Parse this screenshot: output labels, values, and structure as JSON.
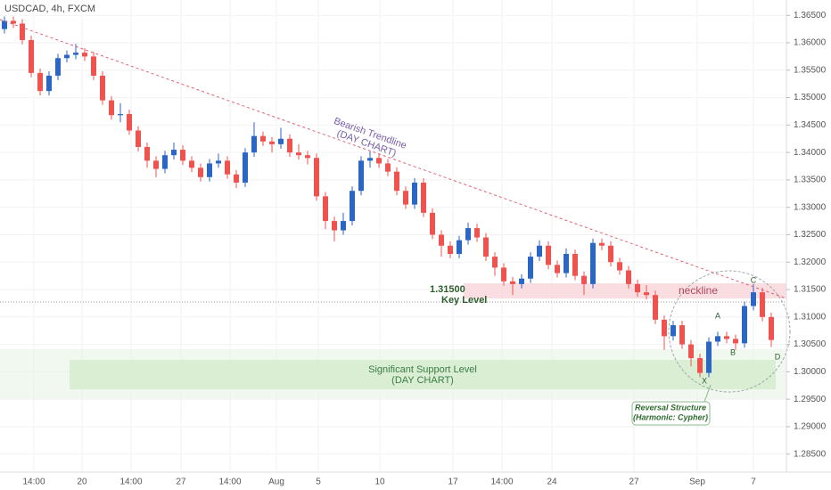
{
  "chart_data": {
    "type": "candlestick",
    "title": "USDCAD, 4h, FXCM",
    "up_color": "#2c66c4",
    "down_color": "#ef5350",
    "open": [
      1.3625,
      1.364,
      1.3635,
      1.3605,
      1.3545,
      1.3512,
      1.354,
      1.3572,
      1.3578,
      1.3582,
      1.3575,
      1.354,
      1.3495,
      1.3468,
      1.347,
      1.344,
      1.341,
      1.3385,
      1.337,
      1.3395,
      1.3405,
      1.3385,
      1.3372,
      1.3355,
      1.338,
      1.3385,
      1.336,
      1.3345,
      1.34,
      1.343,
      1.342,
      1.3415,
      1.3425,
      1.34,
      1.3395,
      1.339,
      1.332,
      1.3275,
      1.3258,
      1.3275,
      1.333,
      1.3385,
      1.339,
      1.338,
      1.3365,
      1.333,
      1.3305,
      1.3345,
      1.329,
      1.325,
      1.323,
      1.3215,
      1.324,
      1.3262,
      1.3245,
      1.321,
      1.319,
      1.3165,
      1.316,
      1.317,
      1.321,
      1.323,
      1.3195,
      1.318,
      1.3215,
      1.3175,
      1.316,
      1.3235,
      1.323,
      1.32,
      1.3185,
      1.316,
      1.3145,
      1.314,
      1.3095,
      1.3065,
      1.3085,
      1.305,
      1.3025,
      1.2998,
      1.3055,
      1.3065,
      1.306,
      1.3052,
      1.312,
      1.3145,
      1.31
    ],
    "high": [
      1.3648,
      1.3648,
      1.3643,
      1.3613,
      1.3553,
      1.3548,
      1.358,
      1.3586,
      1.3598,
      1.359,
      1.3583,
      1.3548,
      1.3503,
      1.349,
      1.3478,
      1.3448,
      1.3418,
      1.3393,
      1.3403,
      1.3418,
      1.3413,
      1.3393,
      1.338,
      1.3388,
      1.3398,
      1.3393,
      1.3368,
      1.3408,
      1.3455,
      1.3438,
      1.3428,
      1.3445,
      1.3433,
      1.3415,
      1.3403,
      1.3398,
      1.3328,
      1.3283,
      1.329,
      1.3338,
      1.3393,
      1.3402,
      1.3398,
      1.3388,
      1.3373,
      1.3338,
      1.3353,
      1.3353,
      1.3298,
      1.3258,
      1.3238,
      1.3248,
      1.3272,
      1.327,
      1.3253,
      1.3218,
      1.3198,
      1.3173,
      1.3178,
      1.3218,
      1.324,
      1.3238,
      1.3203,
      1.3225,
      1.3223,
      1.3183,
      1.3243,
      1.3243,
      1.3238,
      1.3208,
      1.3193,
      1.3168,
      1.3158,
      1.3148,
      1.3103,
      1.3093,
      1.3093,
      1.3058,
      1.3033,
      1.3063,
      1.3073,
      1.3073,
      1.3068,
      1.3128,
      1.316,
      1.3153,
      1.3108
    ],
    "low": [
      1.3617,
      1.3627,
      1.3597,
      1.3537,
      1.3504,
      1.3504,
      1.3532,
      1.3564,
      1.357,
      1.3567,
      1.3532,
      1.3487,
      1.346,
      1.3455,
      1.3432,
      1.3402,
      1.3372,
      1.3355,
      1.3362,
      1.3387,
      1.3377,
      1.3364,
      1.3347,
      1.3347,
      1.3372,
      1.3352,
      1.3335,
      1.3337,
      1.3392,
      1.3412,
      1.34,
      1.3407,
      1.3392,
      1.3387,
      1.3378,
      1.3312,
      1.326,
      1.3238,
      1.325,
      1.3267,
      1.3322,
      1.3372,
      1.3372,
      1.3357,
      1.3322,
      1.3297,
      1.3297,
      1.3282,
      1.3242,
      1.321,
      1.3207,
      1.3207,
      1.3232,
      1.3237,
      1.3202,
      1.3175,
      1.3157,
      1.314,
      1.3152,
      1.3162,
      1.3202,
      1.3187,
      1.3172,
      1.3172,
      1.3167,
      1.314,
      1.3152,
      1.3222,
      1.3192,
      1.3177,
      1.3152,
      1.3137,
      1.3132,
      1.3087,
      1.304,
      1.3057,
      1.3042,
      1.301,
      1.299,
      1.299,
      1.3047,
      1.3052,
      1.304,
      1.3044,
      1.3112,
      1.3092,
      1.3045
    ],
    "close": [
      1.364,
      1.3635,
      1.3605,
      1.3545,
      1.3512,
      1.354,
      1.3572,
      1.3578,
      1.3582,
      1.3575,
      1.354,
      1.3495,
      1.3468,
      1.347,
      1.344,
      1.341,
      1.3385,
      1.337,
      1.3395,
      1.3405,
      1.3385,
      1.3372,
      1.3355,
      1.338,
      1.3385,
      1.336,
      1.3345,
      1.34,
      1.343,
      1.342,
      1.3415,
      1.3425,
      1.34,
      1.3395,
      1.339,
      1.332,
      1.3275,
      1.3258,
      1.3275,
      1.333,
      1.3385,
      1.339,
      1.338,
      1.3365,
      1.333,
      1.3305,
      1.3345,
      1.329,
      1.325,
      1.323,
      1.3215,
      1.324,
      1.3262,
      1.3245,
      1.321,
      1.319,
      1.3165,
      1.316,
      1.317,
      1.321,
      1.323,
      1.3195,
      1.318,
      1.3215,
      1.3175,
      1.316,
      1.3235,
      1.323,
      1.32,
      1.3185,
      1.316,
      1.3145,
      1.314,
      1.3095,
      1.3065,
      1.3085,
      1.305,
      1.3025,
      1.2998,
      1.3055,
      1.3065,
      1.306,
      1.3052,
      1.312,
      1.3145,
      1.31,
      1.3058
    ],
    "xlim": [
      -0.5,
      87.7
    ],
    "xticks": [
      {
        "value": 3.3,
        "label": "14:00"
      },
      {
        "value": 8.7,
        "label": "20"
      },
      {
        "value": 14.2,
        "label": "14:00"
      },
      {
        "value": 19.8,
        "label": "27"
      },
      {
        "value": 25.3,
        "label": "14:00"
      },
      {
        "value": 30.5,
        "label": "Aug"
      },
      {
        "value": 35.2,
        "label": "5"
      },
      {
        "value": 42.1,
        "label": "10"
      },
      {
        "value": 50.3,
        "label": "17"
      },
      {
        "value": 55.8,
        "label": "14:00"
      },
      {
        "value": 61.4,
        "label": "24"
      },
      {
        "value": 70.6,
        "label": "27"
      },
      {
        "value": 77.7,
        "label": "Sep"
      },
      {
        "value": 84,
        "label": "7"
      }
    ],
    "ylim": [
      1.2817,
      1.3678
    ],
    "yticks": [
      {
        "value": 1.365,
        "label": "1.36500"
      },
      {
        "value": 1.36,
        "label": "1.36000"
      },
      {
        "value": 1.355,
        "label": "1.35500"
      },
      {
        "value": 1.35,
        "label": "1.35000"
      },
      {
        "value": 1.345,
        "label": "1.34500"
      },
      {
        "value": 1.34,
        "label": "1.34000"
      },
      {
        "value": 1.335,
        "label": "1.33500"
      },
      {
        "value": 1.33,
        "label": "1.33000"
      },
      {
        "value": 1.325,
        "label": "1.32500"
      },
      {
        "value": 1.32,
        "label": "1.32000"
      },
      {
        "value": 1.315,
        "label": "1.31500"
      },
      {
        "value": 1.31,
        "label": "1.31000"
      },
      {
        "value": 1.305,
        "label": "1.30500"
      },
      {
        "value": 1.3,
        "label": "1.30000"
      },
      {
        "value": 1.295,
        "label": "1.29500"
      },
      {
        "value": 1.29,
        "label": "1.29000"
      },
      {
        "value": 1.285,
        "label": "1.28500"
      }
    ],
    "annotations": {
      "trendline": "Bearish Trendline",
      "trendline_note": "(DAY CHART)",
      "key_price": "1.31500",
      "key_level": "Key Level",
      "neckline": "neckline",
      "support": "Significant Support Level",
      "support_note": "(DAY CHART)",
      "reversal": "Reversal Structure",
      "reversal_note": "(Harmonic: Cypher)",
      "point_x": "X",
      "point_a": "A",
      "point_b": "B",
      "point_c": "C",
      "point_d": "D"
    }
  }
}
